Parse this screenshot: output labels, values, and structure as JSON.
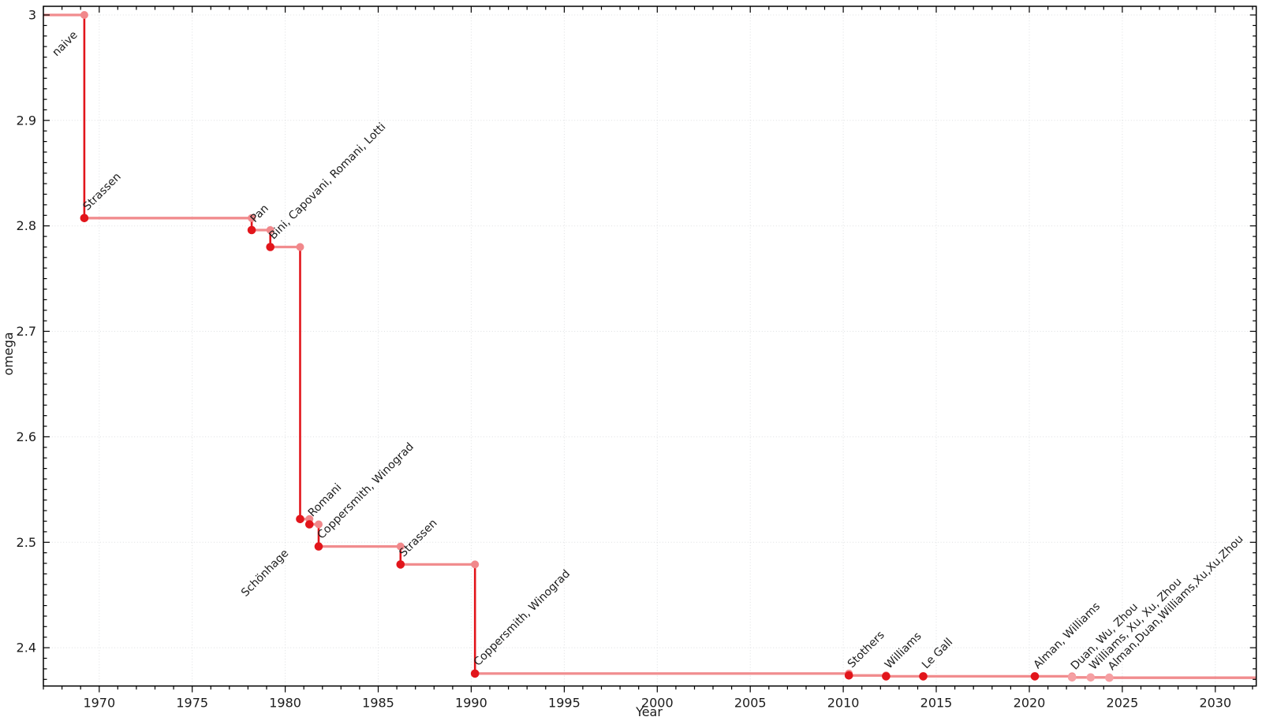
{
  "chart_data": {
    "type": "line",
    "subtype": "step-function",
    "title": "",
    "xlabel": "Year",
    "ylabel": "omega",
    "xlim": [
      1967.0,
      2032.2
    ],
    "ylim": [
      2.3637,
      3.0082
    ],
    "grid": "dotted-major-both-axes",
    "legend": "none",
    "x_ticks": [
      {
        "value": 1970,
        "label": "1970"
      },
      {
        "value": 1975,
        "label": "1975"
      },
      {
        "value": 1980,
        "label": "1980"
      },
      {
        "value": 1985,
        "label": "1985"
      },
      {
        "value": 1990,
        "label": "1990"
      },
      {
        "value": 1995,
        "label": "1995"
      },
      {
        "value": 2000,
        "label": "2000"
      },
      {
        "value": 2005,
        "label": "2005"
      },
      {
        "value": 2010,
        "label": "2010"
      },
      {
        "value": 2015,
        "label": "2015"
      },
      {
        "value": 2020,
        "label": "2020"
      },
      {
        "value": 2025,
        "label": "2025"
      },
      {
        "value": 2030,
        "label": "2030"
      }
    ],
    "y_ticks": [
      {
        "value": 2.4,
        "label": "2.4"
      },
      {
        "value": 2.5,
        "label": "2.5"
      },
      {
        "value": 2.6,
        "label": "2.6"
      },
      {
        "value": 2.7,
        "label": "2.7"
      },
      {
        "value": 2.8,
        "label": "2.8"
      },
      {
        "value": 2.9,
        "label": "2.9"
      },
      {
        "value": 3.0,
        "label": "3"
      }
    ],
    "x_minor_step": 1,
    "y_minor_step": 0.01,
    "baseline": {
      "label": "naive",
      "omega": 3.0,
      "from_year": 1967.0
    },
    "events": [
      {
        "year": 1969.2,
        "omega": 2.8074,
        "label": "Strassen",
        "confirmed": true
      },
      {
        "year": 1978.2,
        "omega": 2.796,
        "label": "Pan",
        "confirmed": true
      },
      {
        "year": 1979.2,
        "omega": 2.78,
        "label": "Bini, Capovani, Romani, Lotti",
        "confirmed": true
      },
      {
        "year": 1980.8,
        "omega": 2.522,
        "label": "Schönhage",
        "confirmed": true
      },
      {
        "year": 1981.3,
        "omega": 2.517,
        "label": "Romani",
        "confirmed": true
      },
      {
        "year": 1981.8,
        "omega": 2.496,
        "label": "Coppersmith, Winograd",
        "confirmed": true
      },
      {
        "year": 1986.2,
        "omega": 2.479,
        "label": "Strassen",
        "confirmed": true
      },
      {
        "year": 1990.2,
        "omega": 2.3755,
        "label": "Coppersmith, Winograd",
        "confirmed": true
      },
      {
        "year": 2010.3,
        "omega": 2.3737,
        "label": "Stothers",
        "confirmed": true
      },
      {
        "year": 2012.3,
        "omega": 2.3729,
        "label": "Williams",
        "confirmed": true
      },
      {
        "year": 2014.3,
        "omega": 2.3728639,
        "label": "Le Gall",
        "confirmed": true
      },
      {
        "year": 2020.3,
        "omega": 2.3728596,
        "label": "Alman, Williams",
        "confirmed": true
      },
      {
        "year": 2022.3,
        "omega": 2.37188,
        "label": "Duan, Wu, Zhou",
        "confirmed": false
      },
      {
        "year": 2023.3,
        "omega": 2.371866,
        "label": "Williams, Xu, Xu, Zhou",
        "confirmed": false
      },
      {
        "year": 2024.3,
        "omega": 2.371552,
        "label": "Alman,Duan,Williams,Xu,Xu,Zhou",
        "confirmed": false
      }
    ],
    "line_extends_to_year": 2032.2,
    "colors": {
      "step_horizontal": "#F18C8E",
      "step_vertical": "#E2151B",
      "dot_confirmed": "#E2151B",
      "dot_corner": "#F1888B",
      "dot_unconfirmed": "#F5A0A3",
      "label_confirmed": "#1c1c1c",
      "label_unconfirmed": "#9A9A9A",
      "grid": "#c3c6ca",
      "axis": "#000000"
    }
  }
}
